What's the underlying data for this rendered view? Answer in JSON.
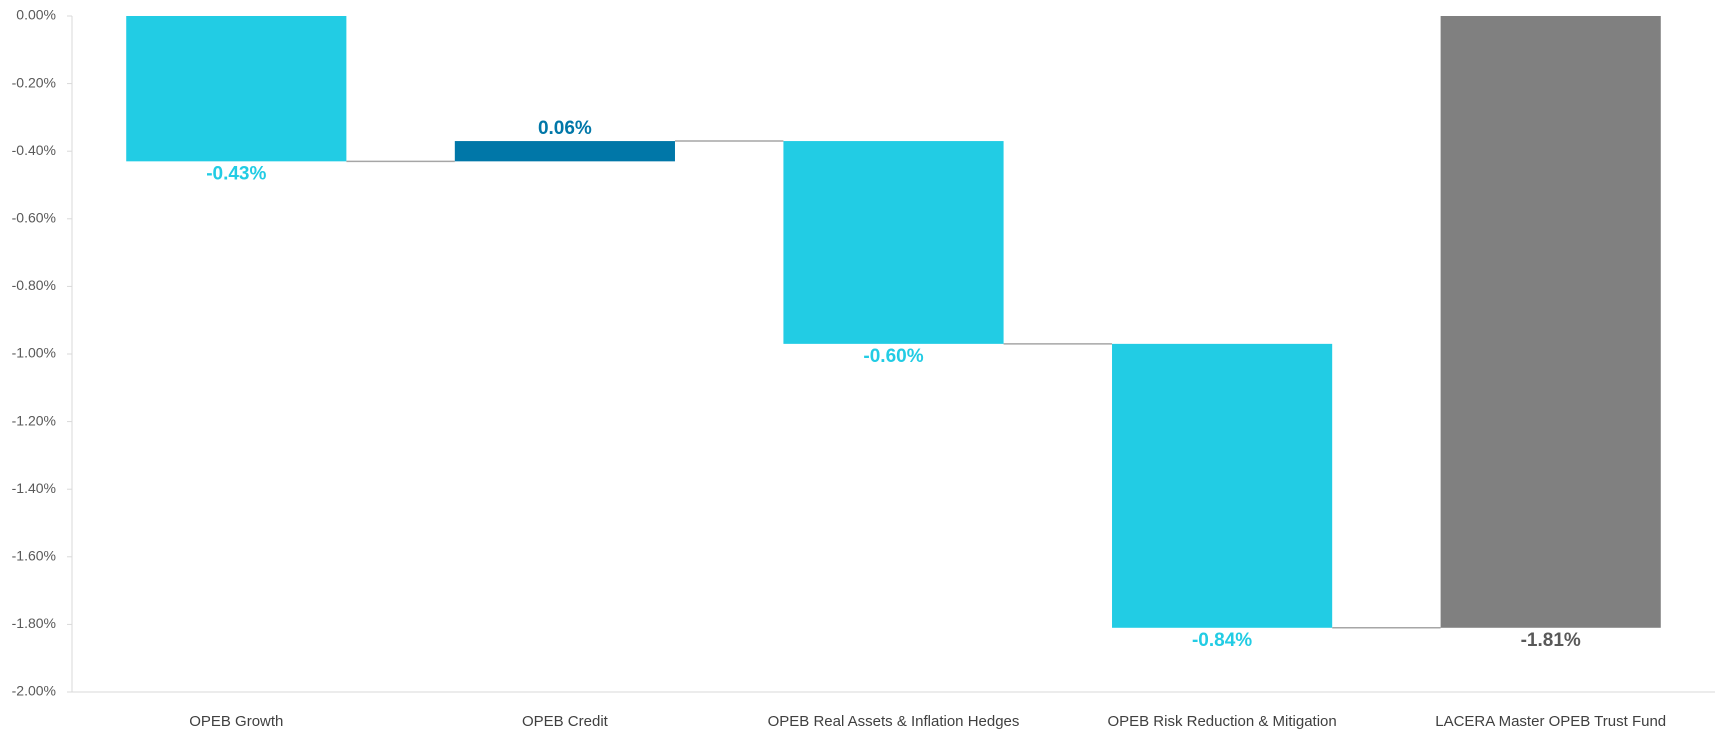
{
  "chart_data": {
    "type": "waterfall",
    "categories": [
      "OPEB Growth",
      "OPEB Credit",
      "OPEB Real Assets & Inflation Hedges",
      "OPEB Risk Reduction & Mitigation",
      "LACERA Master OPEB Trust Fund"
    ],
    "values": [
      -0.43,
      0.06,
      -0.6,
      -0.84,
      -1.81
    ],
    "value_labels": [
      "-0.43%",
      "0.06%",
      "-0.60%",
      "-0.84%",
      "-1.81%"
    ],
    "measures": [
      "relative",
      "relative",
      "relative",
      "relative",
      "total"
    ],
    "colors": [
      "#22cce4",
      "#0077a8",
      "#22cce4",
      "#22cce4",
      "#808080"
    ],
    "label_colors": [
      "#22cce4",
      "#0077a8",
      "#22cce4",
      "#22cce4",
      "#595959"
    ],
    "ylim": [
      -2.0,
      0.0
    ],
    "yticks": [
      {
        "value": 0.0,
        "label": "0.00%"
      },
      {
        "value": -0.2,
        "label": "-0.20%"
      },
      {
        "value": -0.4,
        "label": "-0.40%"
      },
      {
        "value": -0.6,
        "label": "-0.60%"
      },
      {
        "value": -0.8,
        "label": "-0.80%"
      },
      {
        "value": -1.0,
        "label": "-1.00%"
      },
      {
        "value": -1.2,
        "label": "-1.20%"
      },
      {
        "value": -1.4,
        "label": "-1.40%"
      },
      {
        "value": -1.6,
        "label": "-1.60%"
      },
      {
        "value": -1.8,
        "label": "-1.80%"
      },
      {
        "value": -2.0,
        "label": "-2.00%"
      }
    ],
    "grid": false
  }
}
